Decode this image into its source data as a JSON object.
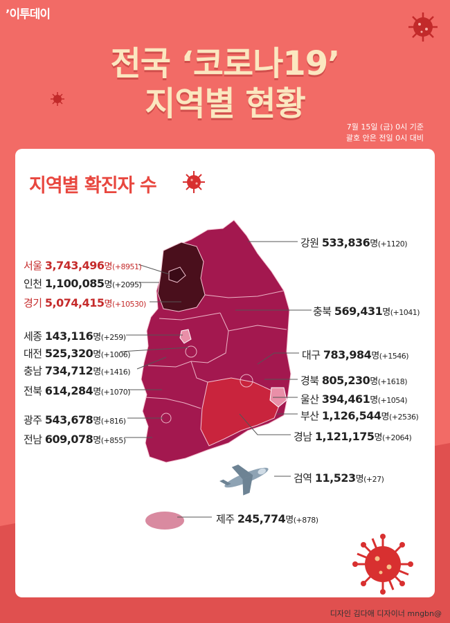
{
  "logo": {
    "text": "이투데이"
  },
  "title": {
    "line1": "전국 ‘코로나19’",
    "line2": "지역별 현황"
  },
  "notes": {
    "line1": "7월 15일 (금) 0시 기준",
    "line2": "괄호 안은 전일 0시 대비"
  },
  "subtitle": "지역별 확진자 수",
  "regions": [
    {
      "name": "강원",
      "value": "533,836",
      "unit": "명",
      "change": "(+1120)"
    },
    {
      "name": "서울",
      "value": "3,743,496",
      "unit": "명",
      "change": "(+8951)"
    },
    {
      "name": "인천",
      "value": "1,100,085",
      "unit": "명",
      "change": "(+2095)"
    },
    {
      "name": "경기",
      "value": "5,074,415",
      "unit": "명",
      "change": "(+10530)"
    },
    {
      "name": "충북",
      "value": "569,431",
      "unit": "명",
      "change": "(+1041)"
    },
    {
      "name": "세종",
      "value": "143,116",
      "unit": "명",
      "change": "(+259)"
    },
    {
      "name": "대전",
      "value": "525,320",
      "unit": "명",
      "change": "(+1006)"
    },
    {
      "name": "대구",
      "value": "783,984",
      "unit": "명",
      "change": "(+1546)"
    },
    {
      "name": "충남",
      "value": "734,712",
      "unit": "명",
      "change": "(+1416)"
    },
    {
      "name": "경북",
      "value": "805,230",
      "unit": "명",
      "change": "(+1618)"
    },
    {
      "name": "전북",
      "value": "614,284",
      "unit": "명",
      "change": "(+1070)"
    },
    {
      "name": "울산",
      "value": "394,461",
      "unit": "명",
      "change": "(+1054)"
    },
    {
      "name": "부산",
      "value": "1,126,544",
      "unit": "명",
      "change": "(+2536)"
    },
    {
      "name": "광주",
      "value": "543,678",
      "unit": "명",
      "change": "(+816)"
    },
    {
      "name": "경남",
      "value": "1,121,175",
      "unit": "명",
      "change": "(+2064)"
    },
    {
      "name": "전남",
      "value": "609,078",
      "unit": "명",
      "change": "(+855)"
    },
    {
      "name": "검역",
      "value": "11,523",
      "unit": "명",
      "change": "(+27)"
    },
    {
      "name": "제주",
      "value": "245,774",
      "unit": "명",
      "change": "(+878)"
    }
  ],
  "credit": "디자인 김다애 디자이너 mngbn@",
  "colors": {
    "background": "#f26b66",
    "title": "#fbe7c0",
    "accent_red": "#e8473f",
    "map_main": "#a3184f",
    "map_capital": "#4a0f1c",
    "map_gyeongnam": "#c9243d",
    "map_light": "#e98fa8"
  }
}
